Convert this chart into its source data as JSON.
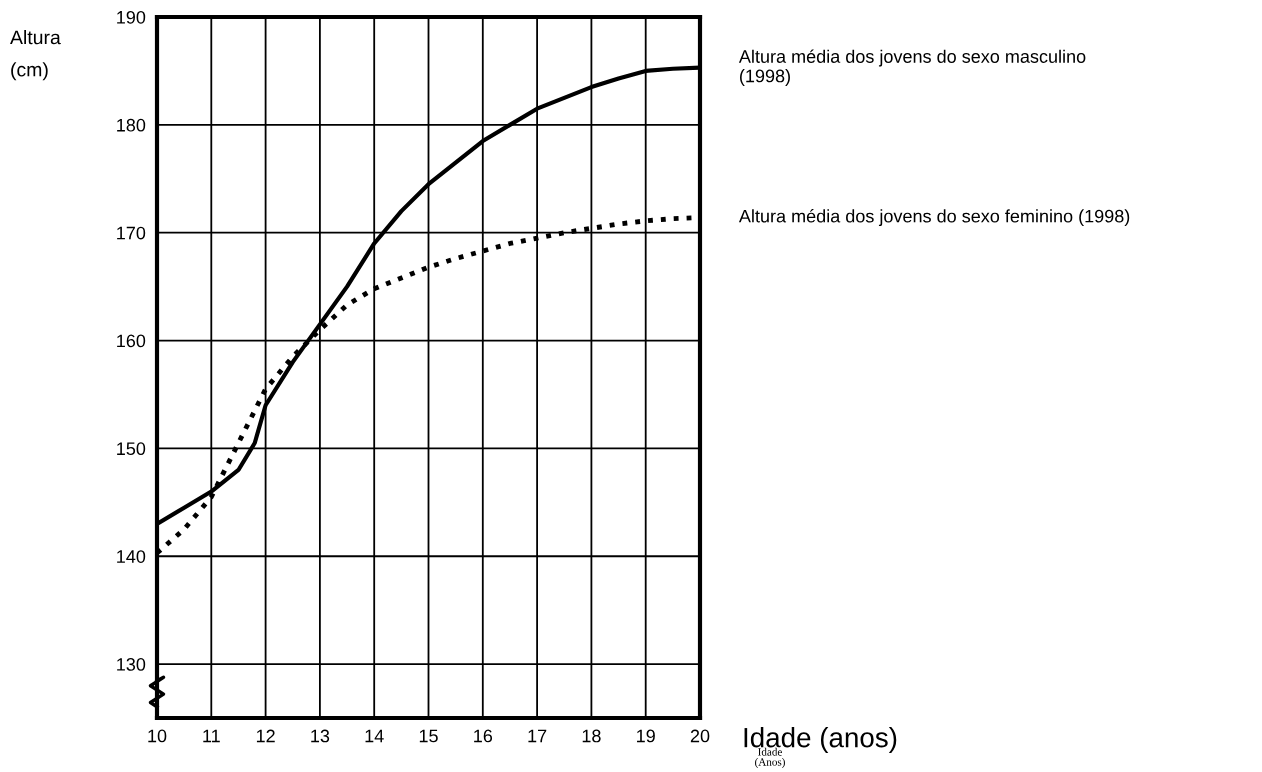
{
  "chart_data": {
    "type": "line",
    "ylabel": "Altura\n(cm)",
    "xlabel": "Idade (anos)",
    "annotations": [
      "Idade\n(Anos)"
    ],
    "xlim": [
      10,
      20
    ],
    "ylim": [
      125,
      190
    ],
    "xticks": [
      10,
      11,
      12,
      13,
      14,
      15,
      16,
      17,
      18,
      19,
      20
    ],
    "yticks": [
      130,
      140,
      150,
      160,
      170,
      180,
      190
    ],
    "grid": true,
    "legend": false,
    "marker": "none",
    "series": [
      {
        "name": "Altura média dos jovens do sexo masculino\n(1998)",
        "color": "#000000",
        "line_style": "solid",
        "x": [
          10,
          10.5,
          11,
          11.5,
          11.8,
          12,
          12.5,
          13,
          13.5,
          14,
          14.5,
          15,
          15.5,
          16,
          16.5,
          17,
          17.5,
          18,
          18.5,
          19,
          19.5,
          20
        ],
        "values": [
          143,
          144.5,
          146,
          148,
          150.5,
          154,
          158,
          161.5,
          165,
          169,
          172,
          174.5,
          176.5,
          178.5,
          180,
          181.5,
          182.5,
          183.5,
          184.3,
          185,
          185.2,
          185.3
        ]
      },
      {
        "name": "Altura média dos jovens do sexo feminino (1998)",
        "color": "#000000",
        "line_style": "dotted",
        "x": [
          10,
          10.5,
          11,
          11.5,
          12,
          12.5,
          13,
          13.5,
          14,
          14.5,
          15,
          15.5,
          16,
          16.5,
          17,
          17.5,
          18,
          18.5,
          19,
          19.5,
          20
        ],
        "values": [
          140.3,
          142.5,
          145.5,
          150.5,
          155.5,
          158.5,
          161,
          163.3,
          164.8,
          165.8,
          166.8,
          167.6,
          168.3,
          169,
          169.5,
          170,
          170.4,
          170.8,
          171.1,
          171.3,
          171.4
        ]
      }
    ]
  }
}
